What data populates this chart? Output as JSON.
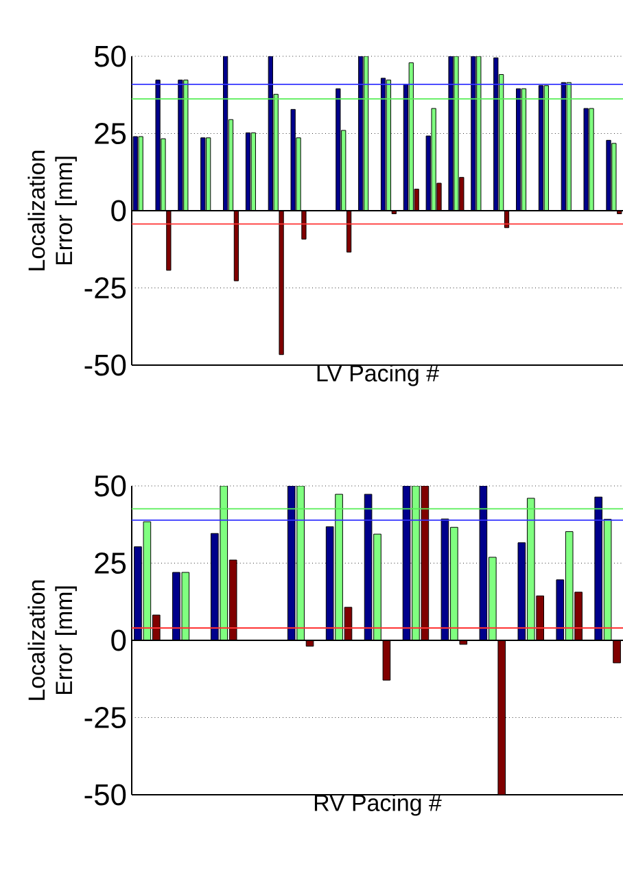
{
  "chart_data": [
    {
      "type": "bar",
      "xlabel": "LV Pacing #",
      "ylabel": "Localization Error [mm]",
      "categories": [
        null,
        null,
        null,
        null,
        null,
        null,
        null,
        null,
        null,
        null,
        null,
        null,
        null,
        null,
        null,
        null,
        null,
        null,
        null,
        null,
        null,
        null
      ],
      "series": [
        {
          "color": "#00008b",
          "values": [
            24,
            42.3,
            42.3,
            23.6,
            50,
            25.2,
            50,
            32.8,
            null,
            39.5,
            50,
            42.9,
            40.8,
            24.2,
            50,
            50,
            49.5,
            39.5,
            40.5,
            41.5,
            33.1,
            22.8
          ]
        },
        {
          "color": "#80ff80",
          "values": [
            24,
            23.3,
            42.3,
            23.6,
            29.5,
            25.2,
            37.7,
            23.6,
            null,
            26,
            50,
            42.3,
            47.9,
            33.1,
            50,
            50,
            44.1,
            39.5,
            40.5,
            41.5,
            33.1,
            21.8
          ]
        },
        {
          "color": "#800000",
          "values": [
            null,
            -19.3,
            null,
            null,
            -22.7,
            null,
            -46.6,
            -9.2,
            null,
            -13.4,
            null,
            -1,
            7,
            8.9,
            10.8,
            null,
            -5.5,
            null,
            null,
            null,
            null,
            -1
          ]
        }
      ],
      "ylim": [
        -50,
        50
      ],
      "yticks": [
        -50,
        -25,
        0,
        25,
        50
      ],
      "grid": "y",
      "tick_labels": "y",
      "ref_lines": [
        {
          "axis": "y",
          "value": 0,
          "color": "#000000"
        },
        {
          "axis": "y",
          "value": 40.9,
          "color": "#3333ff"
        },
        {
          "axis": "y",
          "value": 36.2,
          "color": "#55ee55"
        },
        {
          "axis": "y",
          "value": -4.3,
          "color": "#ff3333"
        }
      ]
    },
    {
      "type": "bar",
      "xlabel": "RV Pacing #",
      "ylabel": "Localization Error [mm]",
      "categories": [
        null,
        null,
        null,
        null,
        null,
        null,
        null,
        null,
        null,
        null,
        null,
        null,
        null
      ],
      "series": [
        {
          "color": "#00008b",
          "values": [
            30.3,
            22,
            34.6,
            null,
            50,
            36.8,
            47.3,
            50,
            39.3,
            50,
            31.6,
            19.6,
            46.4
          ]
        },
        {
          "color": "#80ff80",
          "values": [
            38.4,
            22,
            50,
            null,
            50,
            47.3,
            34.4,
            50,
            36.6,
            26.9,
            46,
            35.2,
            39.2
          ]
        },
        {
          "color": "#800000",
          "values": [
            8.2,
            null,
            26,
            null,
            -1.9,
            10.7,
            -12.9,
            50,
            -1.3,
            -50,
            14.4,
            15.6,
            -7.3
          ]
        }
      ],
      "ylim": [
        -50,
        50
      ],
      "yticks": [
        -50,
        -25,
        0,
        25,
        50
      ],
      "grid": "y",
      "tick_labels": "y",
      "ref_lines": [
        {
          "axis": "y",
          "value": 0,
          "color": "#000000"
        },
        {
          "axis": "y",
          "value": 42.6,
          "color": "#55ee55"
        },
        {
          "axis": "y",
          "value": 38.9,
          "color": "#3333ff"
        },
        {
          "axis": "y",
          "value": 4.0,
          "color": "#ff3333"
        }
      ]
    }
  ]
}
